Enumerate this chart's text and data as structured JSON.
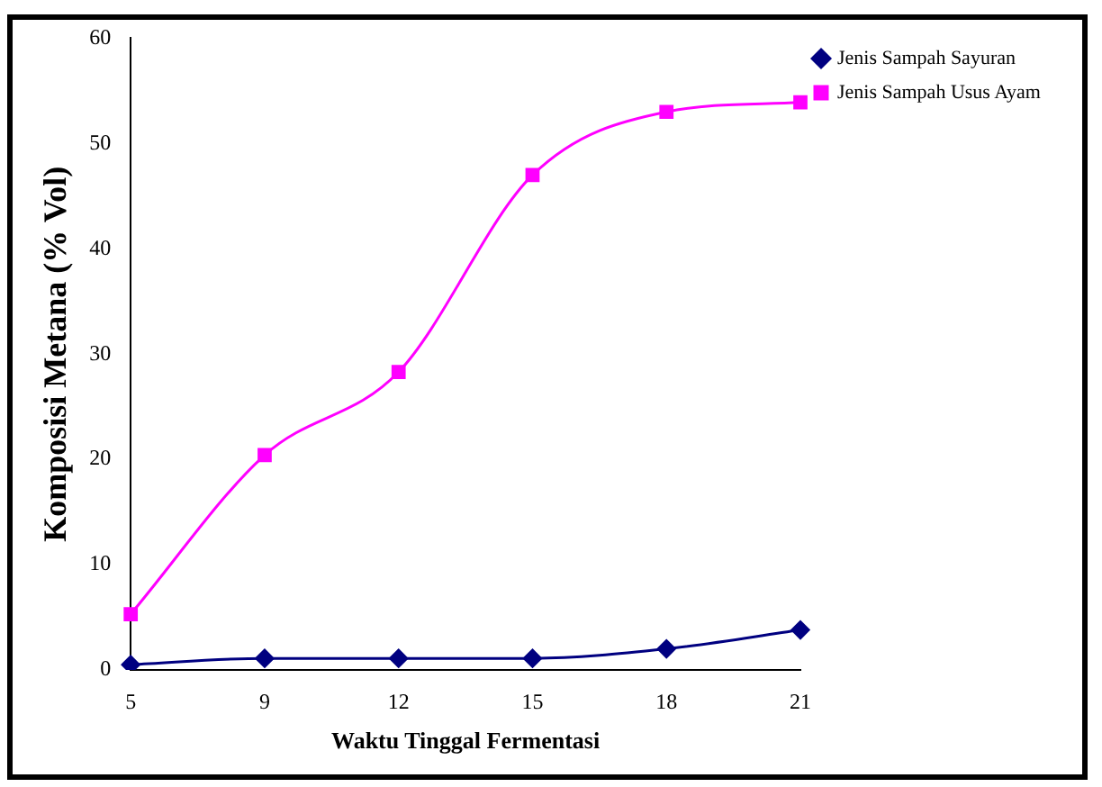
{
  "chart_data": {
    "type": "line",
    "xlabel": "Waktu Tinggal Fermentasi",
    "ylabel": "Komposisi Metana (% Vol)",
    "categories": [
      "5",
      "9",
      "12",
      "15",
      "18",
      "21"
    ],
    "series": [
      {
        "name": "Jenis Sampah Sayuran",
        "color": "#000080",
        "marker": "diamond",
        "values": [
          0.5,
          1.1,
          1.1,
          1.1,
          2,
          3.8
        ]
      },
      {
        "name": "Jenis Sampah Usus Ayam",
        "color": "#ff00ff",
        "marker": "square",
        "values": [
          5.3,
          20.4,
          28.3,
          47,
          53,
          53.9
        ]
      }
    ],
    "ylim": [
      0,
      60
    ],
    "yticks": [
      0,
      10,
      20,
      30,
      40,
      50,
      60
    ],
    "grid": false,
    "legend": "top right"
  }
}
